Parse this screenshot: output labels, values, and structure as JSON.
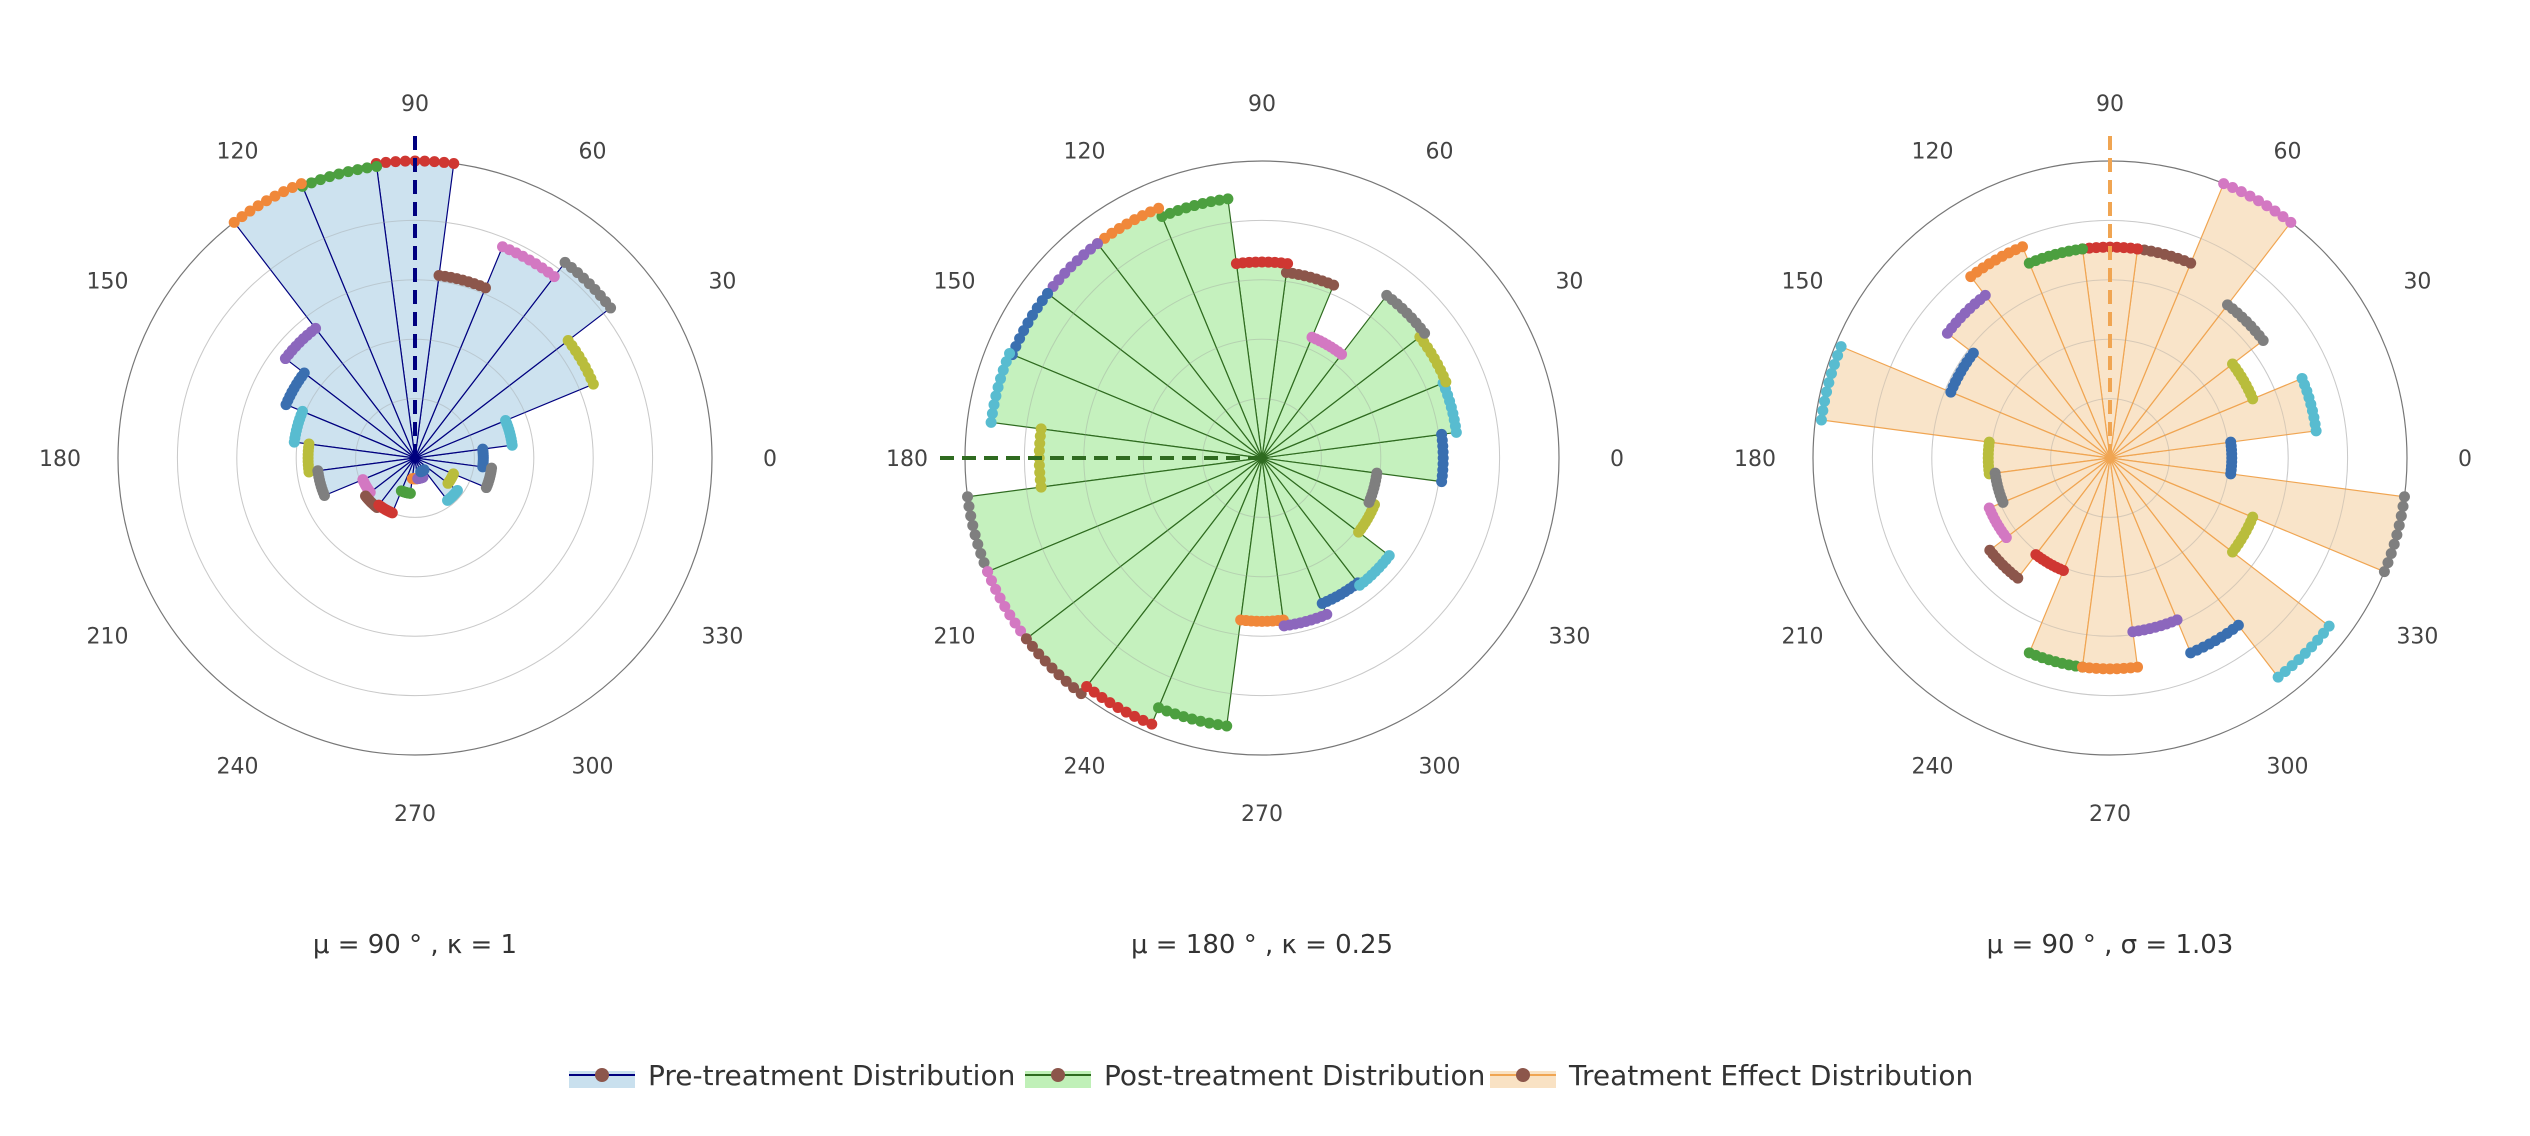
{
  "palette": [
    "#3a6fb0",
    "#58bcd0",
    "#b9bd3c",
    "#7f7f7f",
    "#d378c2",
    "#8c564b",
    "#cf3732",
    "#4c9f3f",
    "#f0883a",
    "#8c67bd"
  ],
  "legend": {
    "items": [
      {
        "label": "Pre-treatment Distribution",
        "fill": "#c9e0ee",
        "line": "#00007f",
        "marker": "#8c564b"
      },
      {
        "label": "Post-treatment Distribution",
        "fill": "#c0f0b8",
        "line": "#2f6b20",
        "marker": "#8c564b"
      },
      {
        "label": "Treatment Effect Distribution",
        "fill": "#f9e2c4",
        "line": "#f0a552",
        "marker": "#8c564b"
      }
    ]
  },
  "chart_data": [
    {
      "type": "polar-bar",
      "name": "Pre-treatment Distribution",
      "subtitle": "μ = 90 ° ,  κ = 1",
      "angular_ticks": [
        "0",
        "30",
        "60",
        "90",
        "120",
        "150",
        "180",
        "210",
        "240",
        "270",
        "300",
        "330"
      ],
      "mean_angle": 90,
      "mean_line_color": "#00007f",
      "fill": "#c9e0ee",
      "line": "#00007f",
      "radial_range": [
        0,
        1
      ],
      "theta": [
        0,
        15,
        30,
        45,
        60,
        75,
        90,
        105,
        120,
        135,
        150,
        165,
        180,
        195,
        210,
        225,
        240,
        255,
        270,
        285,
        300,
        315,
        330,
        345
      ],
      "r": [
        0.23,
        0.33,
        0.65,
        0.83,
        0.77,
        0.62,
        1.0,
        0.99,
        1.0,
        0.55,
        0.47,
        0.41,
        0.36,
        0.33,
        0.19,
        0.21,
        0.2,
        0.12,
        0.07,
        0.07,
        0.05,
        0.18,
        0.14,
        0.26
      ]
    },
    {
      "type": "polar-bar",
      "name": "Post-treatment Distribution",
      "subtitle": "μ = 180 ° ,  κ = 0.25",
      "angular_ticks": [
        "0",
        "30",
        "60",
        "90",
        "120",
        "150",
        "180",
        "210",
        "240",
        "270",
        "300",
        "330"
      ],
      "mean_angle": 180,
      "mean_line_color": "#2f6b20",
      "fill": "#c0f0b8",
      "line": "#2f6b20",
      "radial_range": [
        0,
        1
      ],
      "theta": [
        0,
        15,
        30,
        45,
        60,
        75,
        90,
        105,
        120,
        135,
        150,
        165,
        180,
        195,
        210,
        225,
        240,
        255,
        270,
        285,
        300,
        315,
        330,
        345
      ],
      "r": [
        0.61,
        0.66,
        0.67,
        0.69,
        0.44,
        0.63,
        0.66,
        0.88,
        0.91,
        0.91,
        0.91,
        0.92,
        0.75,
        1.0,
        1.0,
        1.0,
        0.97,
        0.91,
        0.55,
        0.57,
        0.53,
        0.54,
        0.41,
        0.39
      ]
    },
    {
      "type": "polar-bar",
      "name": "Treatment Effect Distribution",
      "subtitle": "μ = 90 ° ,  σ = 1.03",
      "angular_ticks": [
        "0",
        "30",
        "60",
        "90",
        "120",
        "150",
        "180",
        "210",
        "240",
        "270",
        "300",
        "330"
      ],
      "mean_angle": 90,
      "mean_line_color": "#f0a552",
      "fill": "#f9e2c4",
      "line": "#f0a552",
      "radial_range": [
        0,
        1
      ],
      "theta": [
        0,
        15,
        30,
        45,
        60,
        75,
        90,
        105,
        120,
        135,
        150,
        165,
        180,
        195,
        210,
        225,
        240,
        255,
        270,
        285,
        300,
        315,
        330,
        345
      ],
      "r": [
        0.41,
        0.7,
        0.52,
        0.65,
        1.0,
        0.71,
        0.71,
        0.71,
        0.77,
        0.69,
        0.58,
        0.98,
        0.41,
        0.39,
        0.44,
        0.51,
        0.41,
        0.71,
        0.71,
        0.59,
        0.71,
        0.93,
        0.52,
        1.0
      ]
    }
  ]
}
